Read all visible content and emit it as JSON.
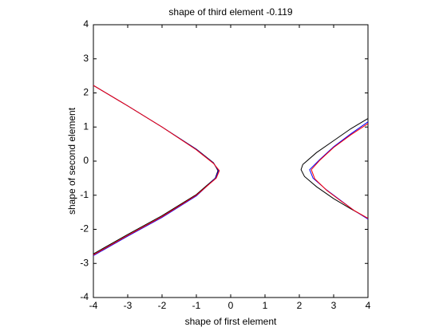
{
  "chart_data": {
    "type": "line",
    "title": "shape of third element  -0.119",
    "x_label": "shape of first element",
    "y_label": "shape of second element",
    "xlim": [
      -4,
      4
    ],
    "ylim": [
      -4,
      4
    ],
    "xticks": [
      -4,
      -3,
      -2,
      -1,
      0,
      1,
      2,
      3,
      4
    ],
    "yticks": [
      -4,
      -3,
      -2,
      -1,
      0,
      1,
      2,
      3,
      4
    ],
    "grid": false,
    "series": [
      {
        "color": "#000000",
        "x": [
          -4,
          -3,
          -2,
          -1,
          -0.5,
          -0.37,
          -0.45,
          -1,
          -2,
          -3,
          -4,
          null,
          4,
          3.5,
          3,
          2.5,
          2.1,
          2.05,
          2.15,
          2.5,
          3,
          3.5,
          4
        ],
        "values": [
          2.22,
          1.62,
          1.0,
          0.35,
          -0.05,
          -0.28,
          -0.5,
          -0.98,
          -1.6,
          -2.15,
          -2.72,
          null,
          1.25,
          0.95,
          0.6,
          0.25,
          -0.1,
          -0.25,
          -0.45,
          -0.75,
          -1.1,
          -1.4,
          -1.68
        ]
      },
      {
        "color": "#0000ff",
        "x": [
          -4,
          -3,
          -2,
          -1,
          -0.5,
          -0.35,
          -0.44,
          -1,
          -2,
          -3,
          -4,
          null,
          4,
          3.5,
          3,
          2.6,
          2.3,
          2.4,
          2.8,
          3.2,
          3.6,
          4
        ],
        "values": [
          2.22,
          1.62,
          1.0,
          0.34,
          -0.06,
          -0.28,
          -0.5,
          -1.02,
          -1.65,
          -2.2,
          -2.77,
          null,
          1.15,
          0.8,
          0.42,
          0.05,
          -0.25,
          -0.5,
          -0.85,
          -1.15,
          -1.45,
          -1.7
        ]
      },
      {
        "color": "#ff0000",
        "x": [
          -4,
          -3,
          -2,
          -1,
          -0.5,
          -0.33,
          -0.42,
          -1,
          -2,
          -3,
          -4,
          null,
          4,
          3.5,
          3,
          2.6,
          2.35,
          2.45,
          2.8,
          3.2,
          3.6,
          4
        ],
        "values": [
          2.22,
          1.62,
          1.0,
          0.33,
          -0.07,
          -0.28,
          -0.5,
          -1.0,
          -1.63,
          -2.18,
          -2.75,
          null,
          1.1,
          0.77,
          0.4,
          0.03,
          -0.25,
          -0.52,
          -0.86,
          -1.16,
          -1.45,
          -1.68
        ]
      }
    ]
  }
}
